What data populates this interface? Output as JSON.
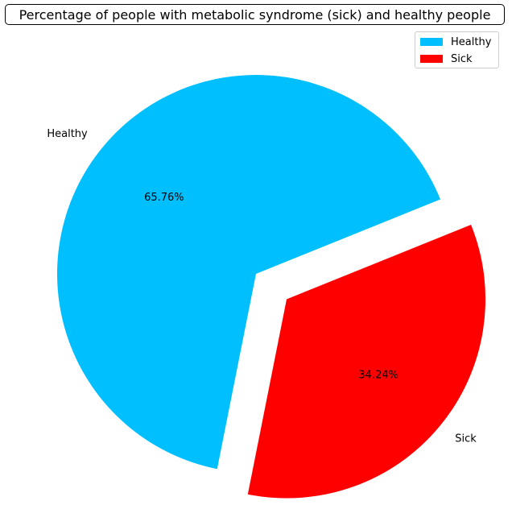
{
  "chart_data": {
    "type": "pie",
    "title": "Percentage of people with metabolic syndrome (sick) and healthy people",
    "slices": [
      {
        "label": "Healthy",
        "value": 65.76,
        "pct_label": "65.76%",
        "color": "#00bfff",
        "exploded": false
      },
      {
        "label": "Sick",
        "value": 34.24,
        "pct_label": "34.24%",
        "color": "#ff0000",
        "exploded": true
      }
    ],
    "legend": {
      "position": "top-right",
      "entries": [
        "Healthy",
        "Sick"
      ]
    },
    "start_angle_deg": 22
  }
}
